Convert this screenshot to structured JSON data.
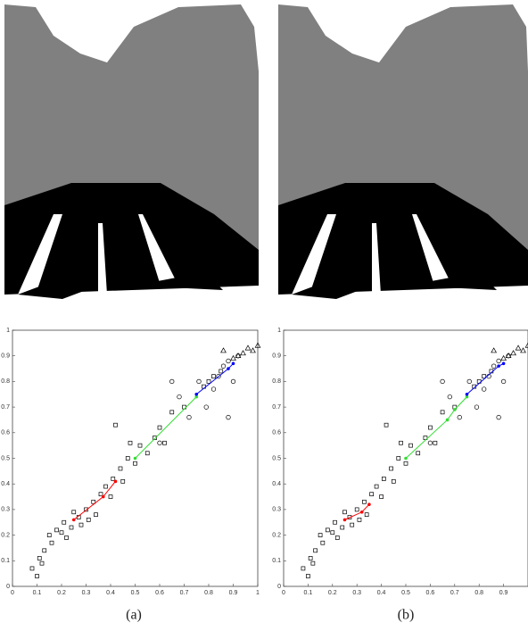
{
  "chart_data": [
    {
      "type": "scatter",
      "caption": "(a)",
      "xlim": [
        0,
        1
      ],
      "ylim": [
        0,
        1
      ],
      "xticks": [
        0,
        0.1,
        0.2,
        0.3,
        0.4,
        0.5,
        0.6,
        0.7,
        0.8,
        0.9,
        1
      ],
      "yticks": [
        0,
        0.1,
        0.2,
        0.3,
        0.4,
        0.5,
        0.6,
        0.7,
        0.8,
        0.9,
        1
      ],
      "series": [
        {
          "marker": "square",
          "color": "#000000",
          "x": [
            0.08,
            0.1,
            0.11,
            0.12,
            0.13,
            0.15,
            0.16,
            0.18,
            0.2,
            0.21,
            0.22,
            0.24,
            0.25,
            0.27,
            0.28,
            0.3,
            0.31,
            0.33,
            0.34,
            0.36,
            0.38,
            0.4,
            0.41,
            0.42,
            0.44,
            0.45,
            0.47,
            0.48,
            0.5,
            0.52,
            0.55,
            0.58,
            0.6,
            0.62,
            0.65,
            0.7,
            0.78,
            0.8,
            0.82,
            0.85
          ],
          "values": [
            0.07,
            0.04,
            0.11,
            0.09,
            0.14,
            0.2,
            0.17,
            0.22,
            0.21,
            0.25,
            0.19,
            0.23,
            0.29,
            0.27,
            0.24,
            0.3,
            0.26,
            0.33,
            0.28,
            0.36,
            0.39,
            0.35,
            0.42,
            0.63,
            0.46,
            0.41,
            0.5,
            0.56,
            0.48,
            0.55,
            0.52,
            0.58,
            0.62,
            0.56,
            0.68,
            0.7,
            0.78,
            0.8,
            0.82,
            0.84
          ]
        },
        {
          "marker": "circle",
          "color": "#000000",
          "x": [
            0.6,
            0.65,
            0.68,
            0.72,
            0.76,
            0.79,
            0.82,
            0.84,
            0.86,
            0.88,
            0.9,
            0.88,
            0.92
          ],
          "values": [
            0.56,
            0.8,
            0.74,
            0.66,
            0.8,
            0.7,
            0.77,
            0.82,
            0.86,
            0.66,
            0.8,
            0.88,
            0.9
          ]
        },
        {
          "marker": "triangle",
          "color": "#000000",
          "x": [
            0.86,
            0.9,
            0.92,
            0.94,
            0.96,
            0.98,
            1.0
          ],
          "values": [
            0.92,
            0.89,
            0.9,
            0.91,
            0.93,
            0.92,
            0.94
          ]
        },
        {
          "marker": "line",
          "color": "#ff0000",
          "x": [
            0.25,
            0.37,
            0.42
          ],
          "values": [
            0.26,
            0.35,
            0.41
          ]
        },
        {
          "marker": "line",
          "color": "#33dd33",
          "x": [
            0.5,
            0.75
          ],
          "values": [
            0.5,
            0.74
          ]
        },
        {
          "marker": "line",
          "color": "#0000ff",
          "x": [
            0.75,
            0.88,
            0.9
          ],
          "values": [
            0.75,
            0.85,
            0.87
          ]
        }
      ]
    },
    {
      "type": "scatter",
      "caption": "(b)",
      "xlim": [
        0,
        1
      ],
      "ylim": [
        0,
        1
      ],
      "xticks": [
        0,
        0.1,
        0.2,
        0.3,
        0.4,
        0.5,
        0.6,
        0.7,
        0.8,
        0.9
      ],
      "yticks": [
        0,
        0.1,
        0.2,
        0.3,
        0.4,
        0.5,
        0.6,
        0.7,
        0.8,
        0.9,
        1
      ],
      "series": [
        {
          "marker": "square",
          "color": "#000000",
          "x": [
            0.08,
            0.1,
            0.11,
            0.12,
            0.13,
            0.15,
            0.16,
            0.18,
            0.2,
            0.21,
            0.22,
            0.24,
            0.25,
            0.27,
            0.28,
            0.3,
            0.31,
            0.33,
            0.34,
            0.36,
            0.38,
            0.4,
            0.41,
            0.42,
            0.44,
            0.45,
            0.47,
            0.48,
            0.5,
            0.52,
            0.55,
            0.58,
            0.6,
            0.62,
            0.65,
            0.7,
            0.78,
            0.8,
            0.82,
            0.85
          ],
          "values": [
            0.07,
            0.04,
            0.11,
            0.09,
            0.14,
            0.2,
            0.17,
            0.22,
            0.21,
            0.25,
            0.19,
            0.23,
            0.29,
            0.27,
            0.24,
            0.3,
            0.26,
            0.33,
            0.28,
            0.36,
            0.39,
            0.35,
            0.42,
            0.63,
            0.46,
            0.41,
            0.5,
            0.56,
            0.48,
            0.55,
            0.52,
            0.58,
            0.62,
            0.56,
            0.68,
            0.7,
            0.78,
            0.8,
            0.82,
            0.84
          ]
        },
        {
          "marker": "circle",
          "color": "#000000",
          "x": [
            0.6,
            0.65,
            0.68,
            0.72,
            0.76,
            0.79,
            0.82,
            0.84,
            0.86,
            0.88,
            0.9,
            0.88,
            0.92
          ],
          "values": [
            0.56,
            0.8,
            0.74,
            0.66,
            0.8,
            0.7,
            0.77,
            0.82,
            0.86,
            0.66,
            0.8,
            0.88,
            0.9
          ]
        },
        {
          "marker": "triangle",
          "color": "#000000",
          "x": [
            0.86,
            0.9,
            0.92,
            0.94,
            0.96,
            0.98,
            1.0
          ],
          "values": [
            0.92,
            0.89,
            0.9,
            0.91,
            0.93,
            0.92,
            0.94
          ]
        },
        {
          "marker": "line",
          "color": "#ff0000",
          "x": [
            0.25,
            0.32,
            0.35
          ],
          "values": [
            0.26,
            0.29,
            0.32
          ]
        },
        {
          "marker": "line",
          "color": "#33dd33",
          "x": [
            0.5,
            0.67,
            0.7,
            0.75
          ],
          "values": [
            0.5,
            0.65,
            0.69,
            0.74
          ]
        },
        {
          "marker": "line",
          "color": "#0000ff",
          "x": [
            0.75,
            0.88,
            0.9
          ],
          "values": [
            0.75,
            0.86,
            0.87
          ]
        }
      ]
    }
  ]
}
